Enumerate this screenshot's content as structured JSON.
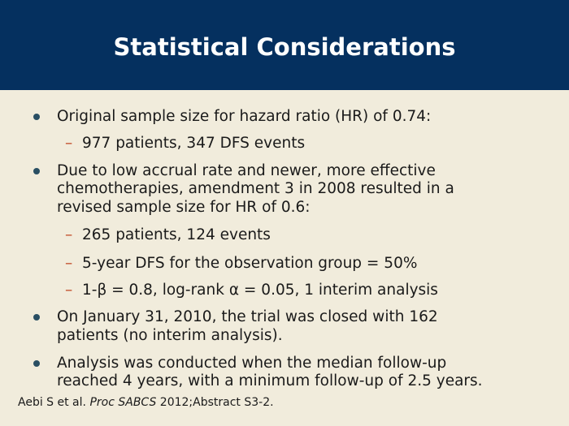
{
  "slide": {
    "title": "Statistical Considerations",
    "accent_color": "#05305f",
    "background_color": "#f1ecdc",
    "bullets": [
      {
        "text": "Original sample size for hazard ratio (HR) of 0.74:",
        "sub": [
          "977 patients, 347 DFS events"
        ]
      },
      {
        "text_lines": [
          "Due to low accrual rate and newer, more effective",
          "chemotherapies, amendment 3 in 2008 resulted in a",
          "revised sample size for HR of 0.6:"
        ],
        "sub": [
          "265 patients, 124 events",
          "5-year DFS for the observation group = 50%",
          "1-β = 0.8, log-rank α = 0.05, 1 interim analysis"
        ]
      },
      {
        "text_lines": [
          "On January 31, 2010, the trial was closed with 162",
          "patients (no interim analysis)."
        ]
      },
      {
        "text_lines": [
          "Analysis was conducted when the median follow-up",
          "reached 4 years, with a minimum follow-up of 2.5 years."
        ]
      }
    ],
    "footnote": {
      "authors": "Aebi S et al. ",
      "journal": "Proc SABCS",
      "rest": " 2012;Abstract S3-2."
    },
    "dash_symbol": "–"
  }
}
